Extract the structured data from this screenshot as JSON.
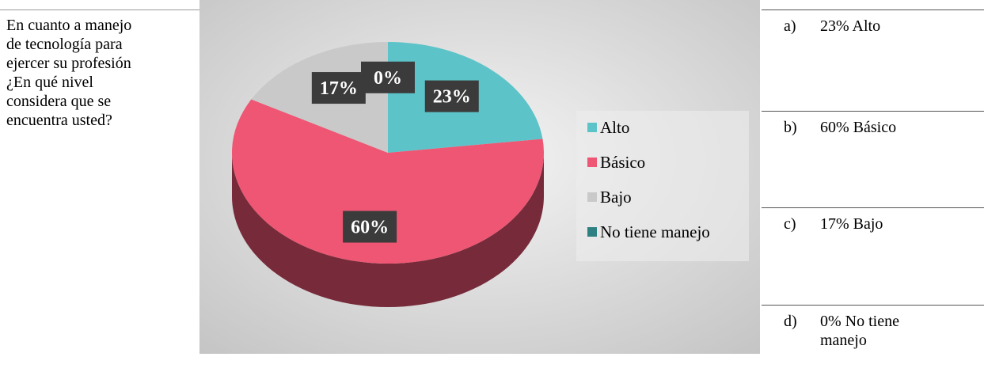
{
  "question": "En cuanto a manejo de tecnología para ejercer su profesión ¿En qué nivel considera que se encuentra usted?",
  "chart_data": {
    "type": "pie",
    "categories": [
      "Alto",
      "Básico",
      "Bajo",
      "No tiene manejo"
    ],
    "values": [
      23,
      60,
      17,
      0
    ],
    "value_labels": [
      "23%",
      "60%",
      "17%",
      "0%"
    ],
    "colors": [
      "#5cc4c9",
      "#ee5673",
      "#c9c9c9",
      "#2f8082"
    ],
    "legend": "right"
  },
  "answers": [
    {
      "letter": "a)",
      "text": "23% Alto"
    },
    {
      "letter": "b)",
      "text": "60% Básico"
    },
    {
      "letter": "c)",
      "text": "17% Bajo"
    },
    {
      "letter": "d)",
      "text": "0% No tiene manejo"
    }
  ]
}
